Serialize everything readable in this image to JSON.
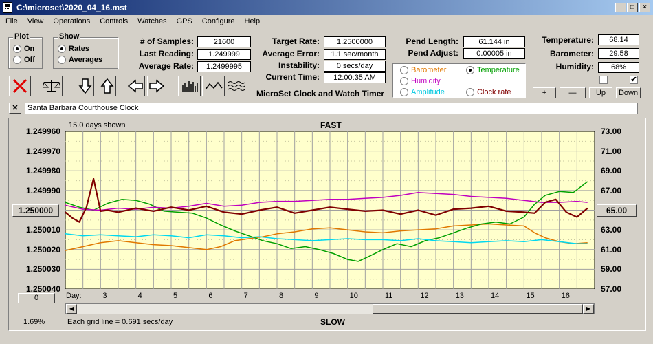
{
  "window": {
    "title": "C:\\microset\\2020_04_16.mst"
  },
  "menu": [
    "File",
    "View",
    "Operations",
    "Controls",
    "Watches",
    "GPS",
    "Configure",
    "Help"
  ],
  "plot_group": {
    "title": "Plot",
    "on": "On",
    "off": "Off",
    "selected": "On"
  },
  "show_group": {
    "title": "Show",
    "rates": "Rates",
    "averages": "Averages",
    "selected": "Rates"
  },
  "stats": {
    "samples_label": "# of Samples:",
    "samples": "21600",
    "last_label": "Last Reading:",
    "last": "1.249999",
    "avg_label": "Average Rate:",
    "avg": "1.2499995",
    "target_label": "Target Rate:",
    "target": "1.2500000",
    "avgerr_label": "Average Error:",
    "avgerr": "1.1 sec/month",
    "instab_label": "Instability:",
    "instab": "0 secs/day",
    "time_label": "Current Time:",
    "time": "12:00:35 AM",
    "pendlen_label": "Pend Length:",
    "pendlen": "61.144 in",
    "pendadj_label": "Pend Adjust:",
    "pendadj": "0.00005 in",
    "temp_label": "Temperature:",
    "temp": "68.14",
    "baro_label": "Barometer:",
    "baro": "29.58",
    "hum_label": "Humidity:",
    "hum": "68%"
  },
  "app_subtitle": "MicroSet Clock and Watch Timer",
  "sensor_options": [
    {
      "label": "Barometer",
      "color": "#e07800",
      "selected": false
    },
    {
      "label": "Temperature",
      "color": "#00a000",
      "selected": true
    },
    {
      "label": "Humidity",
      "color": "#c000c0",
      "selected": false
    },
    {
      "label": "Amplitude",
      "color": "#00c8e0",
      "selected": false
    },
    {
      "label": "Clock rate",
      "color": "#800000",
      "selected": false
    }
  ],
  "param_buttons": {
    "plus": "+",
    "minus": "—",
    "up": "Up",
    "down": "Down"
  },
  "check_a": "",
  "check_b": "✔",
  "clock_name": "Santa Barbara Courthouse Clock",
  "close_x": "✕",
  "plot": {
    "days_shown": "15.0 days shown",
    "fast": "FAST",
    "slow": "SLOW",
    "day_label": "Day:",
    "grid_note": "Each grid line = 0.691 secs/day",
    "percent": "1.69%",
    "left_button": "1.250000",
    "right_button": "65.00",
    "bottom_button": "0"
  },
  "chart_data": {
    "type": "line",
    "left_ticks": [
      "1.249960",
      "1.249970",
      "1.249980",
      "1.249990",
      "1.250000",
      "1.250010",
      "1.250020",
      "1.250030",
      "1.250040"
    ],
    "right_ticks": [
      "73.00",
      "71.00",
      "69.00",
      "67.00",
      "65.00",
      "63.00",
      "61.00",
      "59.00",
      "57.00"
    ],
    "x_ticks": [
      "3",
      "4",
      "5",
      "6",
      "7",
      "8",
      "9",
      "10",
      "11",
      "12",
      "13",
      "14",
      "15",
      "16"
    ],
    "ylim_right": [
      57,
      73
    ],
    "xlim": [
      2,
      17
    ],
    "grid": true,
    "series": [
      {
        "color": "#e07800",
        "x": [
          2,
          2.5,
          3,
          3.5,
          4,
          4.5,
          5,
          5.5,
          6,
          6.4,
          6.8,
          7.2,
          7.6,
          8,
          8.5,
          9,
          9.5,
          10,
          10.5,
          11,
          11.5,
          12,
          12.5,
          13,
          13.5,
          14,
          14.5,
          15,
          15.3,
          15.6,
          16,
          16.4,
          16.8
        ],
        "y": [
          60.9,
          61.3,
          61.7,
          61.9,
          61.7,
          61.5,
          61.4,
          61.2,
          61.0,
          61.3,
          61.9,
          62.1,
          62.3,
          62.6,
          62.8,
          63.1,
          63.2,
          63.0,
          62.8,
          62.7,
          62.9,
          63.0,
          63.1,
          63.4,
          63.5,
          63.6,
          63.5,
          63.4,
          62.7,
          62.2,
          61.8,
          61.6,
          61.7
        ]
      },
      {
        "color": "#00a000",
        "x": [
          2,
          2.4,
          2.8,
          3.2,
          3.6,
          4,
          4.4,
          4.8,
          5.2,
          5.6,
          6,
          6.4,
          6.8,
          7.2,
          7.6,
          8,
          8.4,
          8.8,
          9.2,
          9.6,
          10,
          10.3,
          10.6,
          11,
          11.4,
          11.8,
          12.2,
          12.6,
          13,
          13.4,
          13.8,
          14.2,
          14.6,
          15,
          15.3,
          15.6,
          16,
          16.4,
          16.8
        ],
        "y": [
          65.8,
          65.3,
          65.0,
          65.7,
          66.1,
          66.0,
          65.6,
          64.9,
          64.8,
          64.7,
          64.2,
          63.5,
          62.9,
          62.4,
          61.9,
          61.6,
          61.1,
          61.3,
          61.0,
          60.6,
          60.0,
          59.8,
          60.3,
          61.0,
          61.6,
          61.3,
          61.9,
          62.2,
          62.7,
          63.2,
          63.6,
          63.8,
          63.6,
          64.3,
          65.6,
          66.5,
          66.9,
          66.8,
          67.9
        ]
      },
      {
        "color": "#c000c0",
        "x": [
          2,
          2.5,
          3,
          3.5,
          4,
          4.5,
          5,
          5.5,
          6,
          6.5,
          7,
          7.5,
          8,
          8.5,
          9,
          9.5,
          10,
          10.5,
          11,
          11.5,
          12,
          12.5,
          13,
          13.5,
          14,
          14.5,
          15,
          15.5,
          16,
          16.5,
          16.8
        ],
        "y": [
          65.5,
          65.1,
          65.0,
          65.2,
          65.1,
          65.3,
          65.2,
          65.4,
          65.7,
          65.4,
          65.5,
          65.8,
          65.9,
          65.9,
          66.0,
          66.1,
          66.1,
          66.2,
          66.3,
          66.5,
          66.8,
          66.7,
          66.6,
          66.4,
          66.3,
          66.2,
          66.0,
          65.8,
          65.8,
          65.9,
          65.8
        ]
      },
      {
        "color": "#00d8f0",
        "x": [
          2,
          2.5,
          3,
          3.5,
          4,
          4.5,
          5,
          5.5,
          6,
          6.5,
          7,
          7.5,
          8,
          8.5,
          9,
          9.5,
          10,
          10.5,
          11,
          11.5,
          12,
          12.5,
          13,
          13.5,
          14,
          14.5,
          15,
          15.5,
          16,
          16.5,
          16.8
        ],
        "y": [
          62.6,
          62.4,
          62.5,
          62.4,
          62.3,
          62.5,
          62.4,
          62.2,
          62.5,
          62.4,
          62.2,
          62.3,
          62.1,
          62.0,
          61.9,
          62.0,
          62.1,
          62.0,
          62.0,
          61.9,
          62.1,
          61.9,
          61.8,
          61.7,
          61.8,
          61.9,
          61.8,
          62.0,
          61.8,
          61.6,
          61.6
        ]
      },
      {
        "color": "#800000",
        "x": [
          2,
          2.2,
          2.4,
          2.6,
          2.8,
          3,
          3.2,
          3.5,
          4,
          4.5,
          5,
          5.5,
          6,
          6.5,
          7,
          7.5,
          8,
          8.5,
          9,
          9.5,
          10,
          10.5,
          11,
          11.5,
          12,
          12.5,
          13,
          13.5,
          14,
          14.5,
          15,
          15.3,
          15.6,
          15.9,
          16.2,
          16.5,
          16.8
        ],
        "y": [
          64.8,
          64.2,
          63.8,
          65.3,
          68.2,
          64.9,
          65.0,
          64.8,
          65.2,
          64.9,
          65.3,
          65.0,
          65.4,
          64.8,
          64.6,
          65.0,
          65.3,
          64.7,
          65.0,
          65.3,
          65.1,
          64.9,
          65.0,
          64.6,
          65.0,
          64.5,
          65.1,
          65.2,
          65.4,
          64.9,
          64.8,
          64.7,
          65.8,
          66.1,
          64.8,
          64.3,
          65.2
        ]
      }
    ]
  }
}
